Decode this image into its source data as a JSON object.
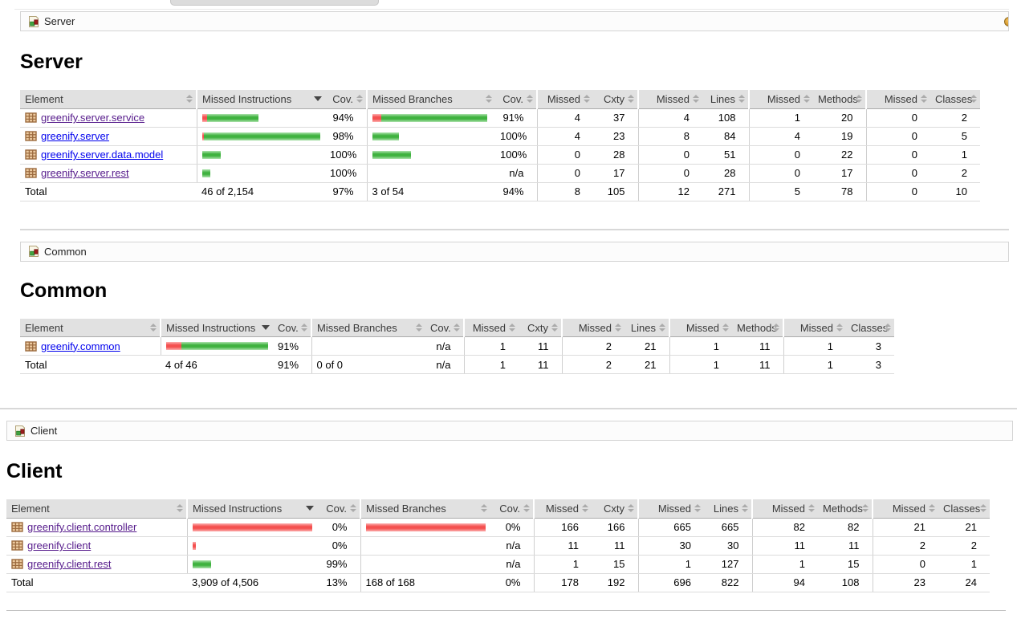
{
  "colors": {
    "bar_green": "#3FB23F",
    "bar_red": "#F4504F",
    "link_unvisited": "#0000EE",
    "link_visited": "#551A8B",
    "header_bg": "#E1E1E1",
    "sessions_icon_orange": "#D99A2B"
  },
  "columns": [
    "Element",
    "Missed Instructions",
    "Cov.",
    "Missed Branches",
    "Cov.",
    "Missed",
    "Cxty",
    "Missed",
    "Lines",
    "Missed",
    "Methods",
    "Missed",
    "Classes"
  ],
  "sort": {
    "sorted_column_label": "Missed Instructions",
    "direction": "desc"
  },
  "sections": [
    {
      "id": "server",
      "icon": "group-icon",
      "breadcrumb": "Server",
      "heading": "Server",
      "sessions_icon_partial": true,
      "top_divider": false,
      "sorted_column": 1,
      "rows": [
        {
          "label": "greenify.server.service",
          "icon": "package-icon",
          "link_color": "#551A8B",
          "instr_bar": {
            "red": 6,
            "green": 64
          },
          "instr_cov": "94%",
          "branch_bar": {
            "red": 11,
            "green": 132
          },
          "branch_cov": "91%",
          "nums": [
            "4",
            "37",
            "4",
            "108",
            "1",
            "20",
            "0",
            "2"
          ]
        },
        {
          "label": "greenify.server",
          "icon": "package-icon",
          "link_color": "#0000EE",
          "instr_bar": {
            "red": 3,
            "green": 150
          },
          "instr_cov": "98%",
          "branch_bar": {
            "red": 0,
            "green": 33
          },
          "branch_cov": "100%",
          "nums": [
            "4",
            "23",
            "8",
            "84",
            "4",
            "19",
            "0",
            "5"
          ]
        },
        {
          "label": "greenify.server.data.model",
          "icon": "package-icon",
          "link_color": "#0000EE",
          "instr_bar": {
            "red": 0,
            "green": 23
          },
          "instr_cov": "100%",
          "branch_bar": {
            "red": 0,
            "green": 48
          },
          "branch_cov": "100%",
          "nums": [
            "0",
            "28",
            "0",
            "51",
            "0",
            "22",
            "0",
            "1"
          ]
        },
        {
          "label": "greenify.server.rest",
          "icon": "package-icon",
          "link_color": "#551A8B",
          "instr_bar": {
            "red": 0,
            "green": 10
          },
          "instr_cov": "100%",
          "branch_bar": null,
          "branch_cov": "n/a",
          "nums": [
            "0",
            "17",
            "0",
            "28",
            "0",
            "17",
            "0",
            "2"
          ]
        }
      ],
      "total": {
        "label": "Total",
        "instr_text": "46 of 2,154",
        "instr_cov": "97%",
        "branch_text": "3 of 54",
        "branch_cov": "94%",
        "nums": [
          "8",
          "105",
          "12",
          "271",
          "5",
          "78",
          "0",
          "10"
        ]
      }
    },
    {
      "id": "common",
      "icon": "group-icon",
      "breadcrumb": "Common",
      "heading": "Common",
      "sessions_icon_partial": false,
      "top_divider": true,
      "sorted_column": 1,
      "rows": [
        {
          "label": "greenify.common",
          "icon": "package-icon",
          "link_color": "#0000EE",
          "instr_bar": {
            "red": 20,
            "green": 114
          },
          "instr_cov": "91%",
          "branch_bar": null,
          "branch_cov": "n/a",
          "nums": [
            "1",
            "11",
            "2",
            "21",
            "1",
            "11",
            "1",
            "3"
          ]
        }
      ],
      "total": {
        "label": "Total",
        "instr_text": "4 of 46",
        "instr_cov": "91%",
        "branch_text": "0 of 0",
        "branch_cov": "n/a",
        "nums": [
          "1",
          "11",
          "2",
          "21",
          "1",
          "11",
          "1",
          "3"
        ]
      }
    },
    {
      "id": "client",
      "icon": "group-icon",
      "breadcrumb": "Client",
      "heading": "Client",
      "sessions_icon_partial": false,
      "top_divider": true,
      "sorted_column": 1,
      "rows": [
        {
          "label": "greenify.client.controller",
          "icon": "package-icon",
          "link_color": "#551A8B",
          "instr_bar": {
            "red": 152,
            "green": 0
          },
          "instr_cov": "0%",
          "branch_bar": {
            "red": 152,
            "green": 0
          },
          "branch_cov": "0%",
          "nums": [
            "166",
            "166",
            "665",
            "665",
            "82",
            "82",
            "21",
            "21"
          ]
        },
        {
          "label": "greenify.client",
          "icon": "package-icon",
          "link_color": "#551A8B",
          "instr_bar": {
            "red": 4,
            "green": 0
          },
          "instr_cov": "0%",
          "branch_bar": null,
          "branch_cov": "n/a",
          "nums": [
            "11",
            "11",
            "30",
            "30",
            "11",
            "11",
            "2",
            "2"
          ]
        },
        {
          "label": "greenify.client.rest",
          "icon": "package-icon",
          "link_color": "#551A8B",
          "instr_bar": {
            "red": 0,
            "green": 23
          },
          "instr_cov": "99%",
          "branch_bar": null,
          "branch_cov": "n/a",
          "nums": [
            "1",
            "15",
            "1",
            "127",
            "1",
            "15",
            "0",
            "1"
          ]
        }
      ],
      "total": {
        "label": "Total",
        "instr_text": "3,909 of 4,506",
        "instr_cov": "13%",
        "branch_text": "168 of 168",
        "branch_cov": "0%",
        "nums": [
          "178",
          "192",
          "696",
          "822",
          "94",
          "108",
          "23",
          "24"
        ]
      }
    }
  ]
}
